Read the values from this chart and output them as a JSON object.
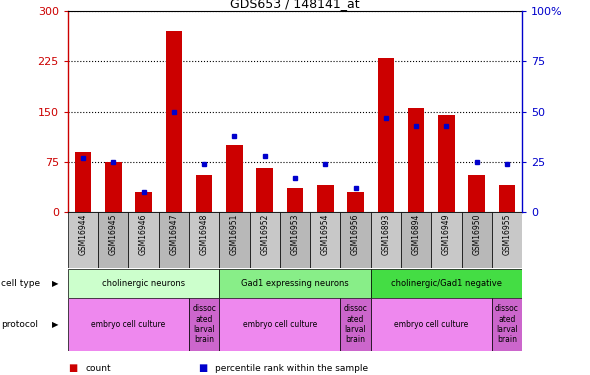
{
  "title": "GDS653 / 148141_at",
  "samples": [
    "GSM16944",
    "GSM16945",
    "GSM16946",
    "GSM16947",
    "GSM16948",
    "GSM16951",
    "GSM16952",
    "GSM16953",
    "GSM16954",
    "GSM16956",
    "GSM16893",
    "GSM16894",
    "GSM16949",
    "GSM16950",
    "GSM16955"
  ],
  "counts": [
    90,
    75,
    30,
    270,
    55,
    100,
    65,
    35,
    40,
    30,
    230,
    155,
    145,
    55,
    40
  ],
  "percentiles": [
    27,
    25,
    10,
    50,
    24,
    38,
    28,
    17,
    24,
    12,
    47,
    43,
    43,
    25,
    24
  ],
  "ylim_left": [
    0,
    300
  ],
  "ylim_right": [
    0,
    100
  ],
  "yticks_left": [
    0,
    75,
    150,
    225,
    300
  ],
  "yticks_right": [
    0,
    25,
    50,
    75,
    100
  ],
  "bar_color": "#cc0000",
  "dot_color": "#0000cc",
  "cell_types": [
    {
      "label": "cholinergic neurons",
      "start": 0,
      "end": 5,
      "color": "#ccffcc"
    },
    {
      "label": "Gad1 expressing neurons",
      "start": 5,
      "end": 10,
      "color": "#88ee88"
    },
    {
      "label": "cholinergic/Gad1 negative",
      "start": 10,
      "end": 15,
      "color": "#44dd44"
    }
  ],
  "protocols": [
    {
      "label": "embryo cell culture",
      "start": 0,
      "end": 4,
      "color": "#ee88ee"
    },
    {
      "label": "dissoc\nated\nlarval\nbrain",
      "start": 4,
      "end": 5,
      "color": "#cc66cc"
    },
    {
      "label": "embryo cell culture",
      "start": 5,
      "end": 9,
      "color": "#ee88ee"
    },
    {
      "label": "dissoc\nated\nlarval\nbrain",
      "start": 9,
      "end": 10,
      "color": "#cc66cc"
    },
    {
      "label": "embryo cell culture",
      "start": 10,
      "end": 14,
      "color": "#ee88ee"
    },
    {
      "label": "dissoc\nated\nlarval\nbrain",
      "start": 14,
      "end": 15,
      "color": "#cc66cc"
    }
  ],
  "legend_items": [
    {
      "label": "count",
      "color": "#cc0000"
    },
    {
      "label": "percentile rank within the sample",
      "color": "#0000cc"
    }
  ],
  "sample_box_colors": [
    "#c8c8c8",
    "#b8b8b8"
  ],
  "axis_label_color_left": "#cc0000",
  "axis_label_color_right": "#0000cc"
}
